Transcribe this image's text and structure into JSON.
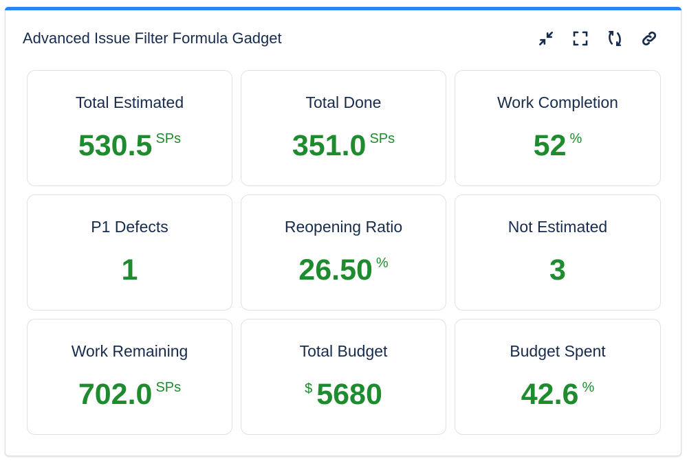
{
  "gadget": {
    "title": "Advanced Issue Filter Formula Gadget",
    "accent": "#2684ff",
    "value_color": "#1e8b2e",
    "icons": [
      "minimize-icon",
      "fullscreen-icon",
      "refresh-icon",
      "link-icon"
    ]
  },
  "tiles": [
    {
      "label": "Total Estimated",
      "prefix": "",
      "value": "530.5",
      "unit": "SPs"
    },
    {
      "label": "Total Done",
      "prefix": "",
      "value": "351.0",
      "unit": "SPs"
    },
    {
      "label": "Work Completion",
      "prefix": "",
      "value": "52",
      "unit": "%"
    },
    {
      "label": "P1 Defects",
      "prefix": "",
      "value": "1",
      "unit": ""
    },
    {
      "label": "Reopening Ratio",
      "prefix": "",
      "value": "26.50",
      "unit": "%"
    },
    {
      "label": "Not Estimated",
      "prefix": "",
      "value": "3",
      "unit": ""
    },
    {
      "label": "Work Remaining",
      "prefix": "",
      "value": "702.0",
      "unit": "SPs"
    },
    {
      "label": "Total Budget",
      "prefix": "$",
      "value": "5680",
      "unit": ""
    },
    {
      "label": "Budget Spent",
      "prefix": "",
      "value": "42.6",
      "unit": "%"
    }
  ]
}
